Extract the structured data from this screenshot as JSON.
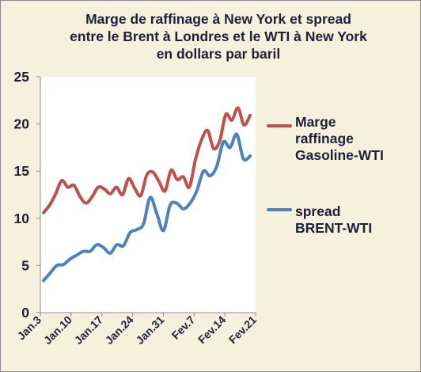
{
  "chart_data": {
    "type": "line",
    "title_lines": [
      "Marge de raffinage à New York et spread",
      "entre le Brent à Londres et le WTI  à New York",
      "en dollars par baril"
    ],
    "xlabel": "",
    "ylabel": "",
    "ylim": [
      0,
      25
    ],
    "yticks": [
      "0",
      "5",
      "10",
      "15",
      "20",
      "25"
    ],
    "xticks": [
      "Jan.3",
      "Jan.10",
      "Jan.17",
      "Jan.24",
      "Jan.31",
      "Fev.7",
      "Fev.14",
      "Fev.21"
    ],
    "grid": false,
    "legend_position": "right",
    "series": [
      {
        "name_lines": [
          "Marge",
          "raffinage",
          "Gasoline-WTI"
        ],
        "color": "#c0504d",
        "values": [
          10.6,
          11.4,
          12.6,
          14.0,
          13.3,
          13.5,
          12.3,
          11.6,
          12.3,
          13.3,
          13.1,
          12.6,
          13.3,
          12.5,
          14.2,
          13.2,
          12.4,
          14.6,
          14.9,
          13.9,
          12.9,
          15.1,
          14.1,
          14.4,
          13.3,
          16.2,
          18.3,
          19.3,
          17.4,
          18.2,
          21.0,
          20.4,
          21.7,
          19.9,
          20.9
        ]
      },
      {
        "name_lines": [
          "spread",
          "BRENT-WTI"
        ],
        "color": "#4f81bd",
        "values": [
          3.4,
          4.2,
          5.0,
          5.1,
          5.7,
          6.1,
          6.5,
          6.5,
          7.2,
          6.9,
          6.3,
          7.2,
          7.1,
          8.5,
          8.8,
          9.4,
          12.2,
          10.5,
          8.7,
          11.4,
          11.6,
          11.0,
          11.6,
          12.9,
          15.0,
          14.5,
          15.5,
          18.1,
          17.5,
          18.9,
          16.3,
          16.6
        ]
      }
    ]
  },
  "colors": {
    "background": "#f6f1dc",
    "plot_area": "#ffffff",
    "series_1": "#c0504d",
    "series_2": "#4f81bd"
  }
}
